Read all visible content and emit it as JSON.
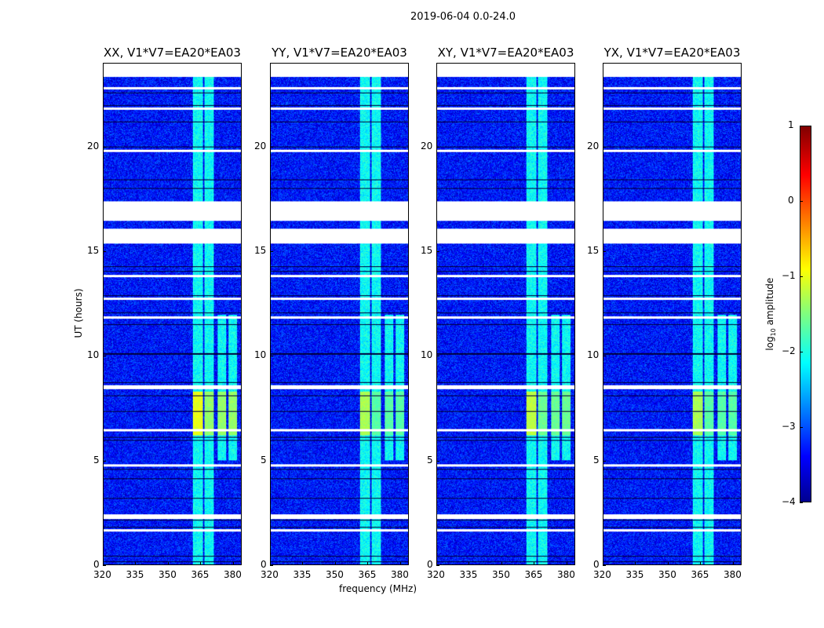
{
  "chart_data": {
    "type": "heatmap",
    "title": "2019-06-04 0.0-24.0",
    "xlabel": "frequency (MHz)",
    "ylabel": "UT (hours)",
    "xlim": [
      320,
      384
    ],
    "ylim": [
      0,
      24
    ],
    "xticks": [
      320,
      335,
      350,
      365,
      380
    ],
    "yticks": [
      0,
      5,
      10,
      15,
      20
    ],
    "panels": [
      {
        "title": "XX, V1*V7=EA20*EA03",
        "hot_level": -1.0
      },
      {
        "title": "YY, V1*V7=EA20*EA03",
        "hot_level": -1.3
      },
      {
        "title": "XY, V1*V7=EA20*EA03",
        "hot_level": -1.2
      },
      {
        "title": "YX, V1*V7=EA20*EA03",
        "hot_level": -1.3
      }
    ],
    "background_level": -3.3,
    "rfi_bands_mhz": [
      [
        361.5,
        366
      ],
      [
        367,
        371
      ],
      [
        373,
        377
      ],
      [
        378,
        382
      ]
    ],
    "hot_time_range_hours": [
      6.2,
      8.3
    ],
    "flagged_time_ranges_hours": [
      [
        23.4,
        24
      ],
      [
        16.5,
        17.4
      ],
      [
        15.4,
        16.1
      ],
      [
        8.4,
        8.6
      ],
      [
        2.2,
        2.4
      ],
      [
        11.8,
        11.9
      ],
      [
        12.7,
        12.8
      ],
      [
        13.8,
        13.9
      ],
      [
        1.6,
        1.7
      ],
      [
        4.7,
        4.8
      ],
      [
        6.4,
        6.5
      ],
      [
        19.8,
        19.9
      ],
      [
        21.8,
        21.9
      ],
      [
        22.8,
        22.9
      ]
    ],
    "colorbar": {
      "label": "log10 amplitude",
      "label_main": "log",
      "label_sub": "10",
      "label_rest": " amplitude",
      "range": [
        -4,
        1
      ],
      "ticks": [
        "1",
        "0",
        "−1",
        "−2",
        "−3",
        "−4"
      ]
    }
  }
}
